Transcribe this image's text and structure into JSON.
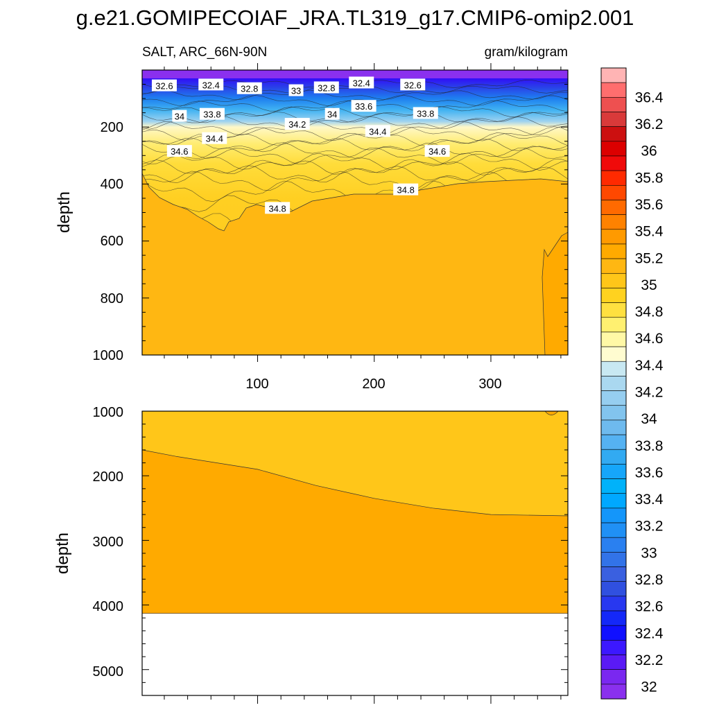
{
  "chart_data": {
    "type": "heatmap",
    "title": "g.e21.GOMIPECOIAF_JRA.TL319_g17.CMIP6-omip2.001",
    "variable_label": "SALT, ARC_66N-90N",
    "units_label": "gram/kilogram",
    "panels": [
      {
        "name": "upper",
        "ylabel": "depth",
        "ylim": [
          0,
          1000
        ],
        "y_ticks": [
          "200",
          "400",
          "600",
          "800",
          "1000"
        ],
        "x_ticks": [
          "100",
          "200",
          "300"
        ],
        "xlim": [
          1,
          366
        ],
        "contour_labels": [
          {
            "text": "32.6",
            "x": 20,
            "y": 55
          },
          {
            "text": "32.4",
            "x": 60,
            "y": 52
          },
          {
            "text": "32.8",
            "x": 93,
            "y": 65
          },
          {
            "text": "33",
            "x": 133,
            "y": 72
          },
          {
            "text": "32.8",
            "x": 159,
            "y": 62
          },
          {
            "text": "32.4",
            "x": 189,
            "y": 45
          },
          {
            "text": "32.6",
            "x": 233,
            "y": 52
          },
          {
            "text": "34",
            "x": 33,
            "y": 162
          },
          {
            "text": "33.8",
            "x": 61,
            "y": 155
          },
          {
            "text": "34.2",
            "x": 134,
            "y": 190
          },
          {
            "text": "34",
            "x": 164,
            "y": 155
          },
          {
            "text": "33.6",
            "x": 191,
            "y": 127
          },
          {
            "text": "33.8",
            "x": 244,
            "y": 152
          },
          {
            "text": "34.4",
            "x": 63,
            "y": 240
          },
          {
            "text": "34.4",
            "x": 203,
            "y": 215
          },
          {
            "text": "34.6",
            "x": 33,
            "y": 285
          },
          {
            "text": "34.6",
            "x": 254,
            "y": 285
          },
          {
            "text": "34.8",
            "x": 117,
            "y": 485
          },
          {
            "text": "34.8",
            "x": 227,
            "y": 420
          }
        ]
      },
      {
        "name": "lower",
        "ylabel": "depth",
        "ylim": [
          1000,
          5400
        ],
        "y_ticks": [
          "1000",
          "2000",
          "3000",
          "4000",
          "5000"
        ],
        "xlim": [
          1,
          366
        ],
        "bottom_depth": 4130,
        "contour_34_9_depth": [
          [
            1,
            1600
          ],
          [
            30,
            1700
          ],
          [
            100,
            1900
          ],
          [
            150,
            2150
          ],
          [
            200,
            2350
          ],
          [
            250,
            2500
          ],
          [
            300,
            2600
          ],
          [
            366,
            2620
          ]
        ]
      }
    ],
    "colorbar": {
      "labels": [
        "36.4",
        "36.2",
        "36",
        "35.8",
        "35.6",
        "35.4",
        "35.2",
        "35",
        "34.8",
        "34.6",
        "34.4",
        "34.2",
        "34",
        "33.8",
        "33.6",
        "33.4",
        "33.2",
        "33",
        "32.8",
        "32.6",
        "32.4",
        "32.2",
        "32"
      ],
      "colors": [
        "#ff6e6e",
        "#ee5050",
        "#d93a3a",
        "#cc1010",
        "#dc0000",
        "#f00a0a",
        "#ff2a00",
        "#ff4800",
        "#ff6a00",
        "#ff8200",
        "#ff9a00",
        "#ffaa00",
        "#ffb712",
        "#ffc619",
        "#ffd21f",
        "#ffe040",
        "#fff070",
        "#fff8a6",
        "#fffcd0",
        "#c8e8f2",
        "#aad8f0",
        "#96cef0",
        "#82c4ee",
        "#6ebaee",
        "#55b2f2",
        "#32aaf2",
        "#16a6fa",
        "#00b2fa",
        "#00a8ff",
        "#1496fa",
        "#2090f5",
        "#2a80f0",
        "#3273e8",
        "#3a60e0",
        "#3050e0",
        "#2838f0",
        "#1428f8",
        "#1010ff",
        "#3c18ff",
        "#5a1af5",
        "#7a28f0",
        "#8a30ee",
        "#ffb4b4"
      ]
    }
  }
}
